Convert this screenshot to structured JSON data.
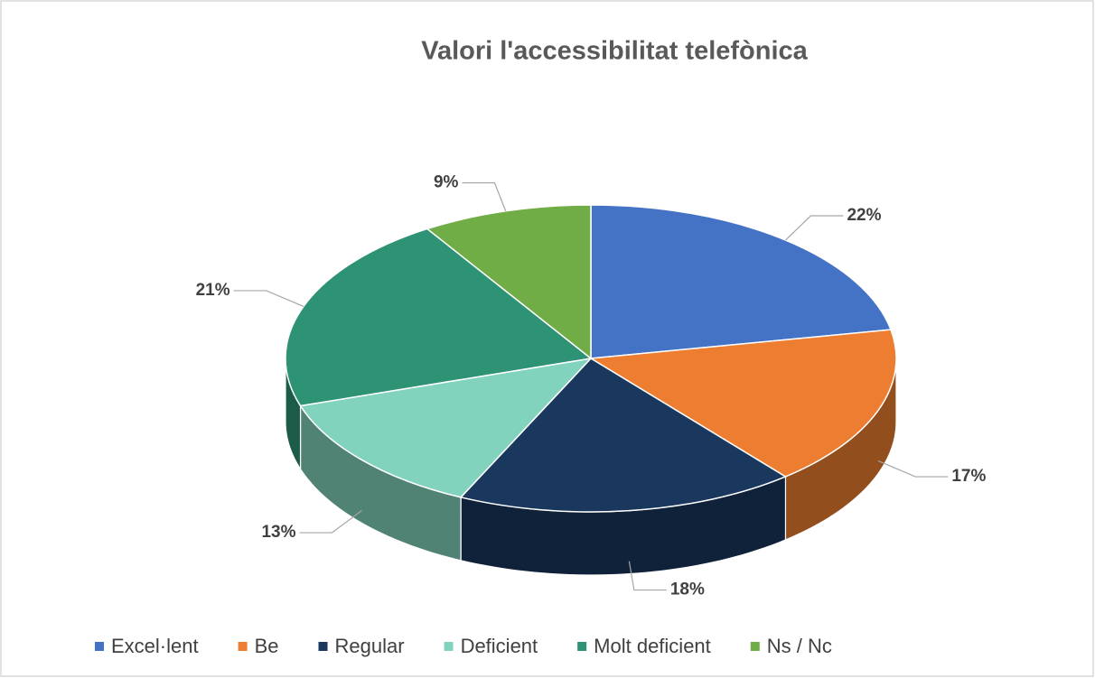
{
  "chart_data": {
    "type": "pie",
    "title": "Valori l'accessibilitat telefònica",
    "categories": [
      "Excel·lent",
      "Be",
      "Regular",
      "Deficient",
      "Molt deficient",
      "Ns / Nc"
    ],
    "values": [
      22,
      17,
      18,
      13,
      21,
      9
    ],
    "value_labels": [
      "22%",
      "17%",
      "18%",
      "13%",
      "21%",
      "9%"
    ],
    "colors": [
      "#4472c4",
      "#ed7d31",
      "#1a375e",
      "#82d3bd",
      "#2e9275",
      "#70ad47"
    ],
    "legend": "bottom"
  }
}
